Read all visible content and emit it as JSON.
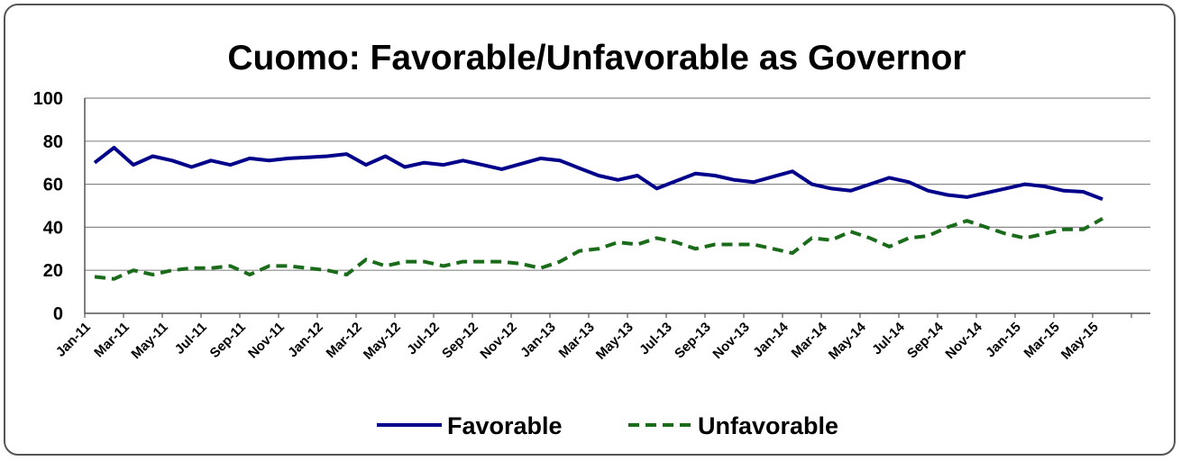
{
  "chart_data": {
    "type": "line",
    "title": "Cuomo: Favorable/Unfavorable as Governor",
    "xlabel": "",
    "ylabel": "",
    "ylim": [
      0,
      100
    ],
    "yticks": [
      "0",
      "20",
      "40",
      "60",
      "80",
      "100"
    ],
    "grid": true,
    "legend_position": "bottom",
    "xtick_labels": [
      "Jan-11",
      "Mar-11",
      "May-11",
      "Jul-11",
      "Sep-11",
      "Nov-11",
      "Jan-12",
      "Mar-12",
      "May-12",
      "Jul-12",
      "Sep-12",
      "Nov-12",
      "Jan-13",
      "Mar-13",
      "May-13",
      "Jul-13",
      "Sep-13",
      "Nov-13",
      "Jan-14",
      "Mar-14",
      "May-14",
      "Jul-14",
      "Sep-14",
      "Nov-14",
      "Jan-15",
      "Mar-15",
      "May-15"
    ],
    "series": [
      {
        "name": "Favorable",
        "color": "#00008B",
        "style": "solid",
        "values": [
          70,
          77,
          69,
          73,
          71,
          68,
          71,
          69,
          72,
          71,
          72,
          72.5,
          73,
          74,
          69,
          73,
          68,
          70,
          69,
          71,
          69,
          67,
          69.5,
          72,
          71,
          67.5,
          64,
          62,
          64,
          58,
          61.5,
          65,
          64,
          62,
          61,
          63.5,
          66,
          60,
          58,
          57,
          60,
          63,
          61,
          57,
          55,
          54,
          56,
          58,
          60,
          59,
          57,
          56.5,
          53
        ],
        "dates": [
          "2011-01-15",
          "2011-02-15",
          "2011-03-15",
          "2011-04-15",
          "2011-05-15",
          "2011-06-15",
          "2011-07-15",
          "2011-08-15",
          "2011-09-15",
          "2011-10-15",
          "2011-11-15",
          "2011-12-15",
          "2012-01-15",
          "2012-02-15",
          "2012-03-15",
          "2012-04-15",
          "2012-05-15",
          "2012-06-15",
          "2012-07-15",
          "2012-08-15",
          "2012-09-15",
          "2012-10-15",
          "2012-11-15",
          "2012-12-15",
          "2013-01-15",
          "2013-02-15",
          "2013-03-15",
          "2013-04-15",
          "2013-05-15",
          "2013-06-15",
          "2013-07-15",
          "2013-08-15",
          "2013-09-15",
          "2013-10-15",
          "2013-11-15",
          "2013-12-15",
          "2014-01-15",
          "2014-02-15",
          "2014-03-15",
          "2014-04-15",
          "2014-05-15",
          "2014-06-15",
          "2014-07-15",
          "2014-08-15",
          "2014-09-15",
          "2014-10-15",
          "2014-11-15",
          "2014-12-15",
          "2015-01-15",
          "2015-02-15",
          "2015-03-15",
          "2015-04-15",
          "2015-05-15"
        ]
      },
      {
        "name": "Unfavorable",
        "color": "#1A6B1A",
        "style": "dashed",
        "values": [
          17,
          16,
          20,
          18,
          20,
          21,
          21,
          22,
          18,
          22,
          22,
          21,
          20,
          18,
          25,
          22,
          24,
          24,
          22,
          24,
          24,
          24,
          23,
          21,
          24,
          29,
          30,
          33,
          32,
          35,
          33,
          30,
          32,
          32,
          32,
          30,
          28,
          35,
          34,
          38,
          35,
          31,
          35,
          36,
          40,
          43,
          40,
          37,
          35,
          37,
          39,
          39,
          44
        ],
        "dates": [
          "2011-01-15",
          "2011-02-15",
          "2011-03-15",
          "2011-04-15",
          "2011-05-15",
          "2011-06-15",
          "2011-07-15",
          "2011-08-15",
          "2011-09-15",
          "2011-10-15",
          "2011-11-15",
          "2011-12-15",
          "2012-01-15",
          "2012-02-15",
          "2012-03-15",
          "2012-04-15",
          "2012-05-15",
          "2012-06-15",
          "2012-07-15",
          "2012-08-15",
          "2012-09-15",
          "2012-10-15",
          "2012-11-15",
          "2012-12-15",
          "2013-01-15",
          "2013-02-15",
          "2013-03-15",
          "2013-04-15",
          "2013-05-15",
          "2013-06-15",
          "2013-07-15",
          "2013-08-15",
          "2013-09-15",
          "2013-10-15",
          "2013-11-15",
          "2013-12-15",
          "2014-01-15",
          "2014-02-15",
          "2014-03-15",
          "2014-04-15",
          "2014-05-15",
          "2014-06-15",
          "2014-07-15",
          "2014-08-15",
          "2014-09-15",
          "2014-10-15",
          "2014-11-15",
          "2014-12-15",
          "2015-01-15",
          "2015-02-15",
          "2015-03-15",
          "2015-04-15",
          "2015-05-15"
        ]
      }
    ]
  }
}
